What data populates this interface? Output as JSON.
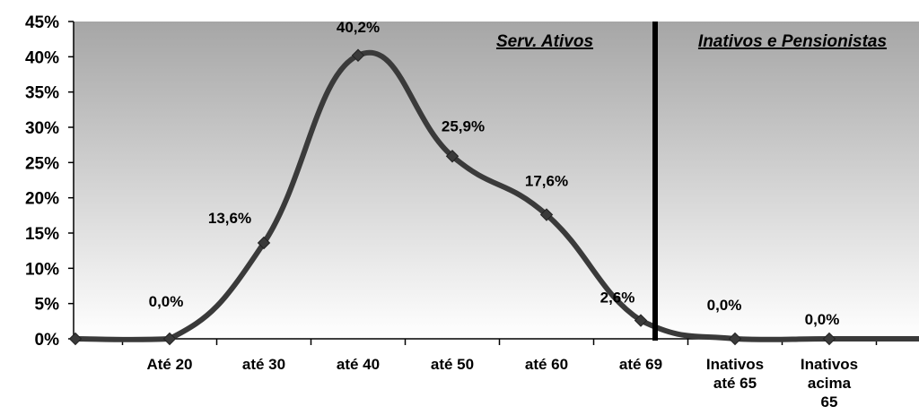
{
  "chart_data": {
    "type": "line",
    "title": "",
    "xlabel": "",
    "ylabel": "",
    "ylim": [
      0,
      45
    ],
    "y_ticks": [
      0,
      5,
      10,
      15,
      20,
      25,
      30,
      35,
      40,
      45
    ],
    "y_tick_labels": [
      "0%",
      "5%",
      "10%",
      "15%",
      "20%",
      "25%",
      "30%",
      "35%",
      "40%",
      "45%"
    ],
    "grid": false,
    "legend": "none",
    "categories": [
      "",
      "Até 20",
      "até 30",
      "até 40",
      "até 50",
      "até 60",
      "até 69",
      "Inativos até 65",
      "Inativos acima 65",
      ""
    ],
    "category_lines": [
      [],
      [
        "Até 20"
      ],
      [
        "até 30"
      ],
      [
        "até 40"
      ],
      [
        "até 50"
      ],
      [
        "até 60"
      ],
      [
        "até 69"
      ],
      [
        "Inativos",
        "até 65"
      ],
      [
        "Inativos",
        "acima",
        "65"
      ],
      []
    ],
    "series": [
      {
        "values": [
          0,
          0,
          13.6,
          40.2,
          25.9,
          17.6,
          2.6,
          0,
          0,
          0
        ],
        "marker_visible": [
          true,
          true,
          true,
          true,
          true,
          true,
          true,
          true,
          true,
          false
        ],
        "data_labels": [
          "",
          "0,0%",
          "13,6%",
          "40,2%",
          "25,9%",
          "17,6%",
          "2,6%",
          "0,0%",
          "0,0%",
          ""
        ],
        "color": "#3a3a3a"
      }
    ],
    "regions": [
      {
        "label": "Serv. Ativos"
      },
      {
        "label": "Inativos e Pensionistas"
      }
    ],
    "divider_after_category_index": 6,
    "colors": {
      "plot_gradient_top": "#a6a6a6",
      "plot_gradient_bottom": "#ffffff",
      "line": "#3a3a3a",
      "marker": "#3a3a3a",
      "divider": "#000000"
    }
  }
}
